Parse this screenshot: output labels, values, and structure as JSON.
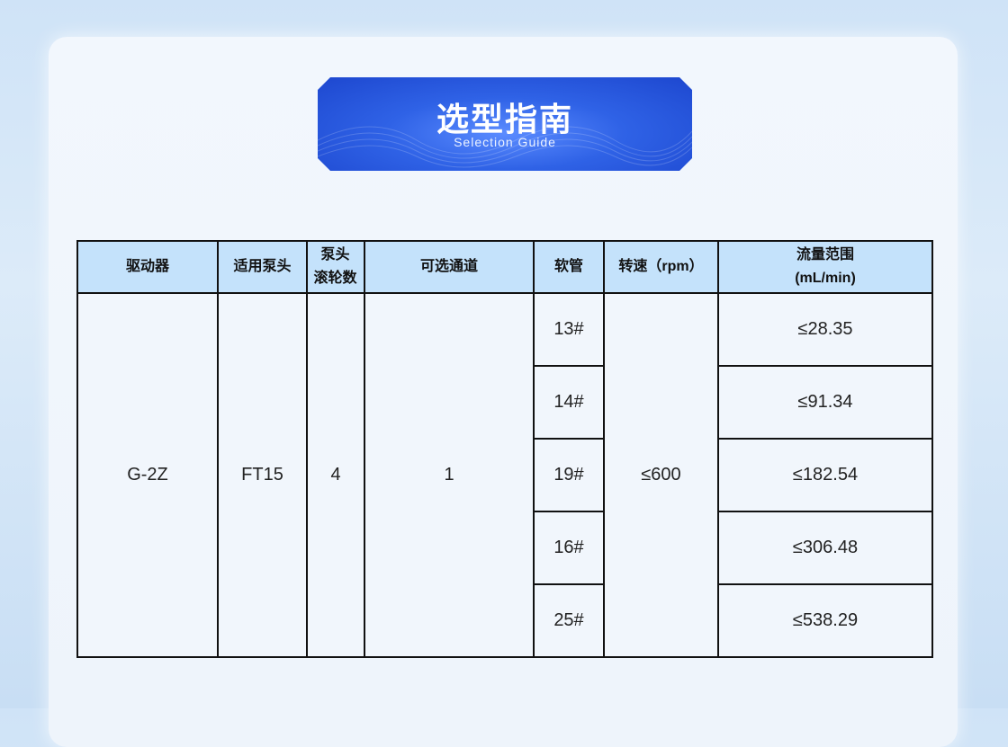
{
  "banner": {
    "title": "选型指南",
    "subtitle": "Selection Guide"
  },
  "table": {
    "headers": [
      "驱动器",
      "适用泵头",
      "泵头滚轮数",
      "可选通道",
      "软管",
      "转速（rpm）",
      "流量范围(mL/min)"
    ],
    "header_lines": {
      "rollers_1": "泵头",
      "rollers_2": "滚轮数",
      "flow_1": "流量范围",
      "flow_2": "(mL/min)"
    },
    "driver": "G-2Z",
    "pump_head": "FT15",
    "rollers": "4",
    "channels": "1",
    "speed": "≤600",
    "rows": [
      {
        "tube": "13#",
        "flow": "≤28.35"
      },
      {
        "tube": "14#",
        "flow": "≤91.34"
      },
      {
        "tube": "19#",
        "flow": "≤182.54"
      },
      {
        "tube": "16#",
        "flow": "≤306.48"
      },
      {
        "tube": "25#",
        "flow": "≤538.29"
      }
    ]
  }
}
